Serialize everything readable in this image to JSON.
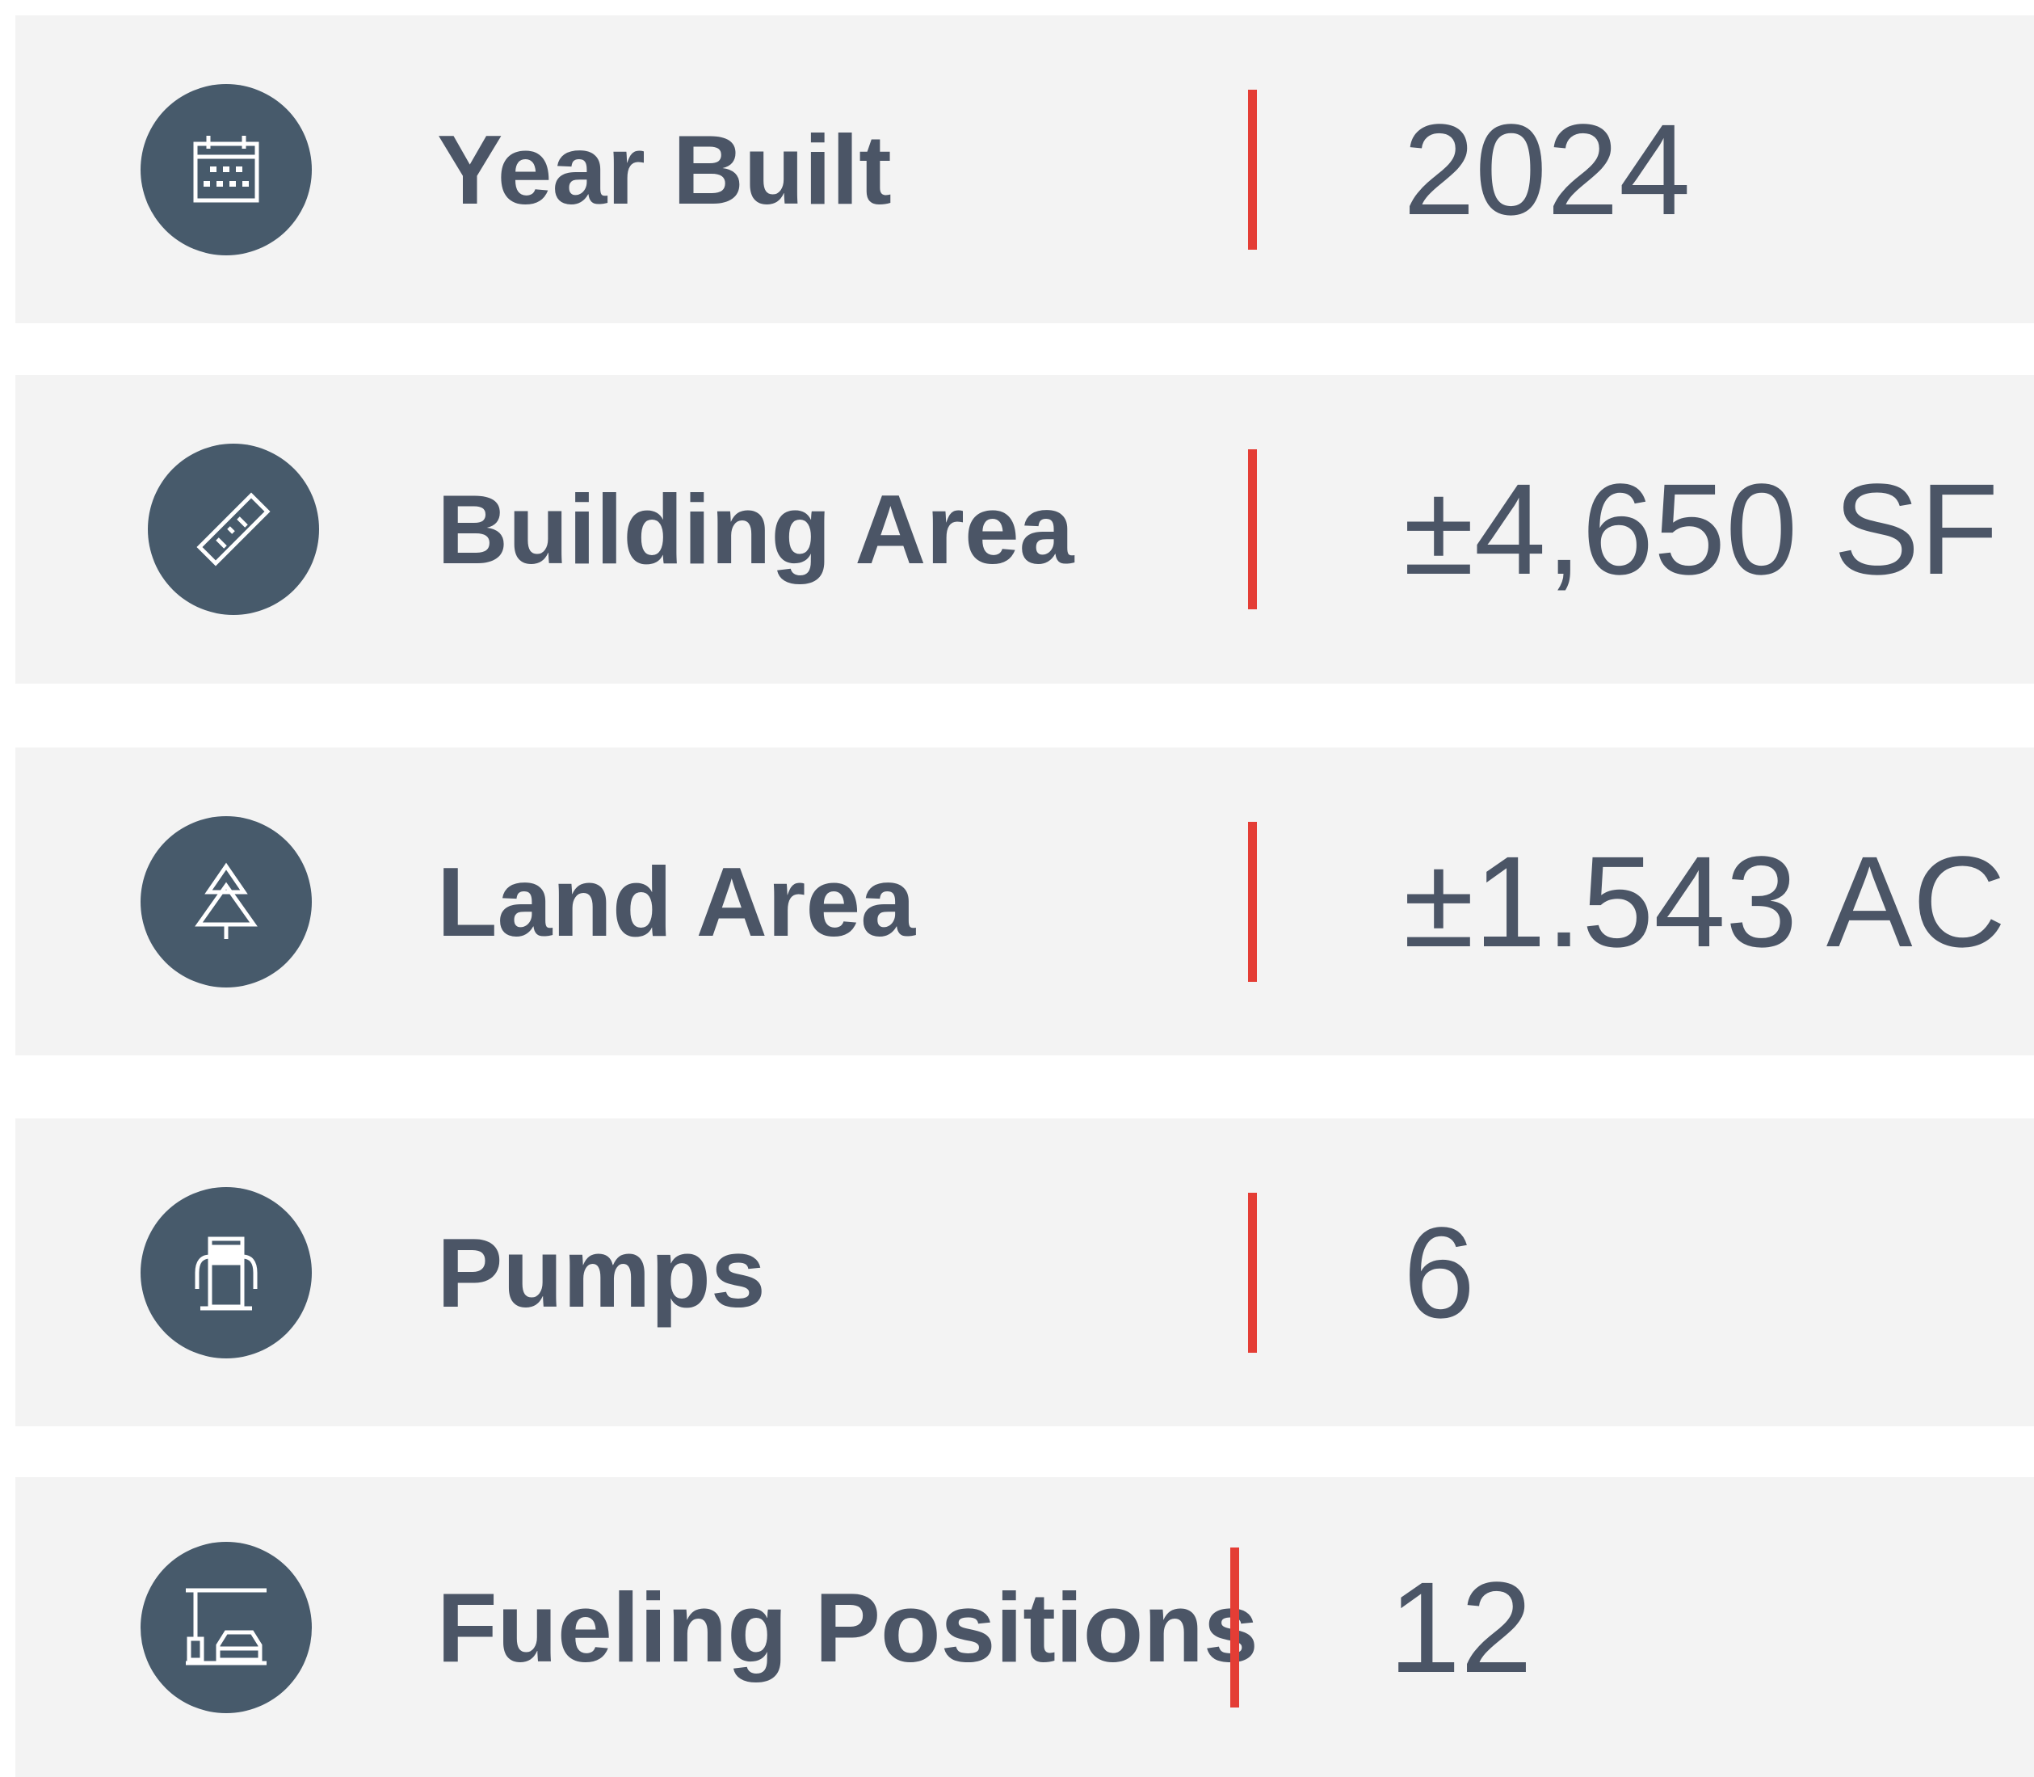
{
  "rows": [
    {
      "label": "Year Built",
      "value": "2024"
    },
    {
      "label": "Building Area",
      "value": "±4,650 SF"
    },
    {
      "label": "Land Area",
      "value": "±1.543 AC"
    },
    {
      "label": "Pumps",
      "value": "6"
    },
    {
      "label": "Fueling Positions",
      "value": "12"
    }
  ]
}
